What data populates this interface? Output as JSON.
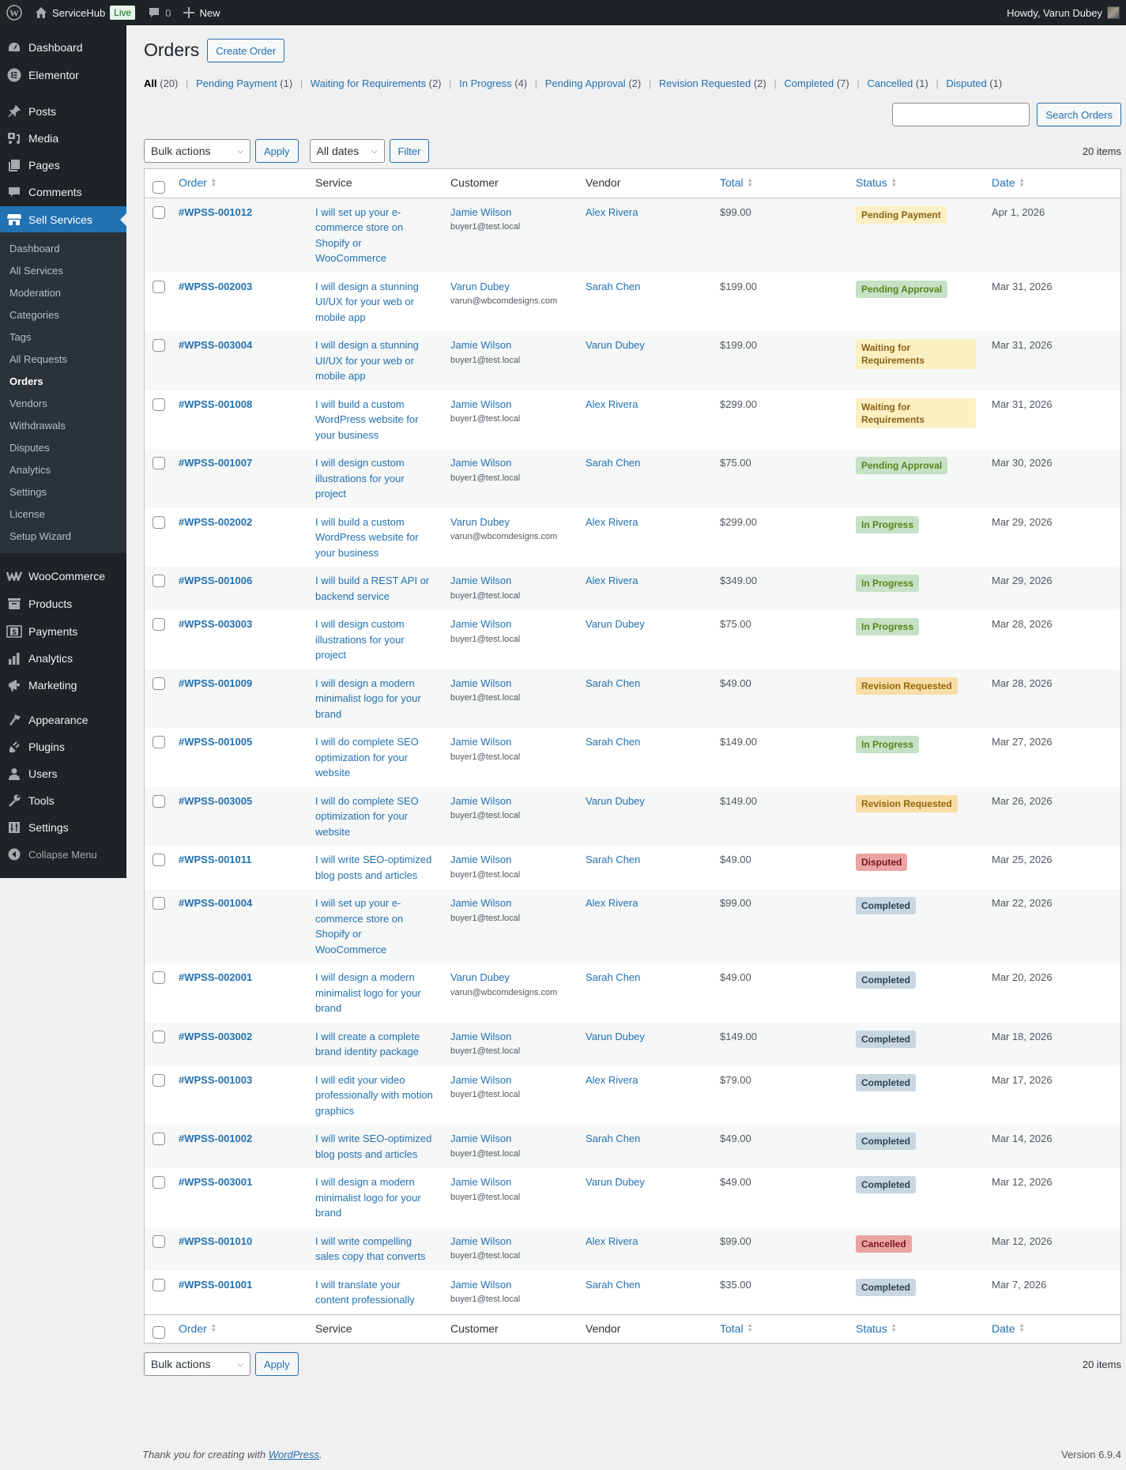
{
  "adminbar": {
    "site_name": "ServiceHub",
    "live_label": "Live",
    "comments_count": "0",
    "new_label": "New",
    "howdy": "Howdy, Varun Dubey"
  },
  "sidebar": {
    "top_items": [
      {
        "label": "Dashboard",
        "icon": "dashboard-icon"
      },
      {
        "label": "Elementor",
        "icon": "elementor-icon"
      },
      {
        "label": "Posts",
        "icon": "pin-icon"
      },
      {
        "label": "Media",
        "icon": "media-icon"
      },
      {
        "label": "Pages",
        "icon": "pages-icon"
      },
      {
        "label": "Comments",
        "icon": "comment-icon"
      },
      {
        "label": "Sell Services",
        "icon": "store-icon"
      }
    ],
    "submenu": [
      "Dashboard",
      "All Services",
      "Moderation",
      "Categories",
      "Tags",
      "All Requests",
      "Orders",
      "Vendors",
      "Withdrawals",
      "Disputes",
      "Analytics",
      "Settings",
      "License",
      "Setup Wizard"
    ],
    "bottom_items": [
      {
        "label": "WooCommerce",
        "icon": "woocommerce-icon"
      },
      {
        "label": "Products",
        "icon": "archive-icon"
      },
      {
        "label": "Payments",
        "icon": "payments-icon"
      },
      {
        "label": "Analytics",
        "icon": "bar-chart-icon"
      },
      {
        "label": "Marketing",
        "icon": "megaphone-icon"
      },
      {
        "label": "Appearance",
        "icon": "brush-icon"
      },
      {
        "label": "Plugins",
        "icon": "plugin-icon"
      },
      {
        "label": "Users",
        "icon": "user-icon"
      },
      {
        "label": "Tools",
        "icon": "wrench-icon"
      },
      {
        "label": "Settings",
        "icon": "settings-icon"
      },
      {
        "label": "Collapse Menu",
        "icon": "collapse-icon"
      }
    ]
  },
  "page": {
    "title": "Orders",
    "create_button": "Create Order",
    "views": [
      {
        "label": "All",
        "count": "(20)",
        "current": true
      },
      {
        "label": "Pending Payment",
        "count": "(1)"
      },
      {
        "label": "Waiting for Requirements",
        "count": "(2)"
      },
      {
        "label": "In Progress",
        "count": "(4)"
      },
      {
        "label": "Pending Approval",
        "count": "(2)"
      },
      {
        "label": "Revision Requested",
        "count": "(2)"
      },
      {
        "label": "Completed",
        "count": "(7)"
      },
      {
        "label": "Cancelled",
        "count": "(1)"
      },
      {
        "label": "Disputed",
        "count": "(1)"
      }
    ],
    "search_value": "",
    "search_button": "Search Orders",
    "bulk_actions": "Bulk actions",
    "apply": "Apply",
    "dates": "All dates",
    "filter": "Filter",
    "items_count": "20 items"
  },
  "table": {
    "columns": [
      "Order",
      "Service",
      "Customer",
      "Vendor",
      "Total",
      "Status",
      "Date"
    ],
    "sortable": [
      true,
      false,
      false,
      false,
      true,
      true,
      true
    ],
    "rows": [
      {
        "order": "#WPSS-001012",
        "service": "I will set up your e-commerce store on Shopify or WooCommerce",
        "customer": "Jamie Wilson",
        "email": "buyer1@test.local",
        "vendor": "Alex Rivera",
        "total": "$99.00",
        "status": "Pending Payment",
        "status_key": "pending-payment",
        "date": "Apr 1, 2026"
      },
      {
        "order": "#WPSS-002003",
        "service": "I will design a stunning UI/UX for your web or mobile app",
        "customer": "Varun Dubey",
        "email": "varun@wbcomdesigns.com",
        "vendor": "Sarah Chen",
        "total": "$199.00",
        "status": "Pending Approval",
        "status_key": "pending-approval",
        "date": "Mar 31, 2026"
      },
      {
        "order": "#WPSS-003004",
        "service": "I will design a stunning UI/UX for your web or mobile app",
        "customer": "Jamie Wilson",
        "email": "buyer1@test.local",
        "vendor": "Varun Dubey",
        "total": "$199.00",
        "status": "Waiting for Requirements",
        "status_key": "waiting",
        "date": "Mar 31, 2026"
      },
      {
        "order": "#WPSS-001008",
        "service": "I will build a custom WordPress website for your business",
        "customer": "Jamie Wilson",
        "email": "buyer1@test.local",
        "vendor": "Alex Rivera",
        "total": "$299.00",
        "status": "Waiting for Requirements",
        "status_key": "waiting",
        "date": "Mar 31, 2026"
      },
      {
        "order": "#WPSS-001007",
        "service": "I will design custom illustrations for your project",
        "customer": "Jamie Wilson",
        "email": "buyer1@test.local",
        "vendor": "Sarah Chen",
        "total": "$75.00",
        "status": "Pending Approval",
        "status_key": "pending-approval",
        "date": "Mar 30, 2026"
      },
      {
        "order": "#WPSS-002002",
        "service": "I will build a custom WordPress website for your business",
        "customer": "Varun Dubey",
        "email": "varun@wbcomdesigns.com",
        "vendor": "Alex Rivera",
        "total": "$299.00",
        "status": "In Progress",
        "status_key": "in-progress",
        "date": "Mar 29, 2026"
      },
      {
        "order": "#WPSS-001006",
        "service": "I will build a REST API or backend service",
        "customer": "Jamie Wilson",
        "email": "buyer1@test.local",
        "vendor": "Alex Rivera",
        "total": "$349.00",
        "status": "In Progress",
        "status_key": "in-progress",
        "date": "Mar 29, 2026"
      },
      {
        "order": "#WPSS-003003",
        "service": "I will design custom illustrations for your project",
        "customer": "Jamie Wilson",
        "email": "buyer1@test.local",
        "vendor": "Varun Dubey",
        "total": "$75.00",
        "status": "In Progress",
        "status_key": "in-progress",
        "date": "Mar 28, 2026"
      },
      {
        "order": "#WPSS-001009",
        "service": "I will design a modern minimalist logo for your brand",
        "customer": "Jamie Wilson",
        "email": "buyer1@test.local",
        "vendor": "Sarah Chen",
        "total": "$49.00",
        "status": "Revision Requested",
        "status_key": "revision",
        "date": "Mar 28, 2026"
      },
      {
        "order": "#WPSS-001005",
        "service": "I will do complete SEO optimization for your website",
        "customer": "Jamie Wilson",
        "email": "buyer1@test.local",
        "vendor": "Sarah Chen",
        "total": "$149.00",
        "status": "In Progress",
        "status_key": "in-progress",
        "date": "Mar 27, 2026"
      },
      {
        "order": "#WPSS-003005",
        "service": "I will do complete SEO optimization for your website",
        "customer": "Jamie Wilson",
        "email": "buyer1@test.local",
        "vendor": "Varun Dubey",
        "total": "$149.00",
        "status": "Revision Requested",
        "status_key": "revision",
        "date": "Mar 26, 2026"
      },
      {
        "order": "#WPSS-001011",
        "service": "I will write SEO-optimized blog posts and articles",
        "customer": "Jamie Wilson",
        "email": "buyer1@test.local",
        "vendor": "Sarah Chen",
        "total": "$49.00",
        "status": "Disputed",
        "status_key": "disputed",
        "date": "Mar 25, 2026"
      },
      {
        "order": "#WPSS-001004",
        "service": "I will set up your e-commerce store on Shopify or WooCommerce",
        "customer": "Jamie Wilson",
        "email": "buyer1@test.local",
        "vendor": "Alex Rivera",
        "total": "$99.00",
        "status": "Completed",
        "status_key": "completed",
        "date": "Mar 22, 2026"
      },
      {
        "order": "#WPSS-002001",
        "service": "I will design a modern minimalist logo for your brand",
        "customer": "Varun Dubey",
        "email": "varun@wbcomdesigns.com",
        "vendor": "Sarah Chen",
        "total": "$49.00",
        "status": "Completed",
        "status_key": "completed",
        "date": "Mar 20, 2026"
      },
      {
        "order": "#WPSS-003002",
        "service": "I will create a complete brand identity package",
        "customer": "Jamie Wilson",
        "email": "buyer1@test.local",
        "vendor": "Varun Dubey",
        "total": "$149.00",
        "status": "Completed",
        "status_key": "completed",
        "date": "Mar 18, 2026"
      },
      {
        "order": "#WPSS-001003",
        "service": "I will edit your video professionally with motion graphics",
        "customer": "Jamie Wilson",
        "email": "buyer1@test.local",
        "vendor": "Alex Rivera",
        "total": "$79.00",
        "status": "Completed",
        "status_key": "completed",
        "date": "Mar 17, 2026"
      },
      {
        "order": "#WPSS-001002",
        "service": "I will write SEO-optimized blog posts and articles",
        "customer": "Jamie Wilson",
        "email": "buyer1@test.local",
        "vendor": "Sarah Chen",
        "total": "$49.00",
        "status": "Completed",
        "status_key": "completed",
        "date": "Mar 14, 2026"
      },
      {
        "order": "#WPSS-003001",
        "service": "I will design a modern minimalist logo for your brand",
        "customer": "Jamie Wilson",
        "email": "buyer1@test.local",
        "vendor": "Varun Dubey",
        "total": "$49.00",
        "status": "Completed",
        "status_key": "completed",
        "date": "Mar 12, 2026"
      },
      {
        "order": "#WPSS-001010",
        "service": "I will write compelling sales copy that converts",
        "customer": "Jamie Wilson",
        "email": "buyer1@test.local",
        "vendor": "Alex Rivera",
        "total": "$99.00",
        "status": "Cancelled",
        "status_key": "cancelled",
        "date": "Mar 12, 2026"
      },
      {
        "order": "#WPSS-001001",
        "service": "I will translate your content professionally",
        "customer": "Jamie Wilson",
        "email": "buyer1@test.local",
        "vendor": "Sarah Chen",
        "total": "$35.00",
        "status": "Completed",
        "status_key": "completed",
        "date": "Mar 7, 2026"
      }
    ]
  },
  "status_colors": {
    "pending-payment": {
      "bg": "#fcf0c3",
      "fg": "#8a6116"
    },
    "waiting": {
      "bg": "#fcf0c3",
      "fg": "#8a6116"
    },
    "pending-approval": {
      "bg": "#c6e1c6",
      "fg": "#5b841b"
    },
    "in-progress": {
      "bg": "#c6e1c6",
      "fg": "#5b841b"
    },
    "revision": {
      "bg": "#f8dda7",
      "fg": "#94660c"
    },
    "disputed": {
      "bg": "#eba3a3",
      "fg": "#761919"
    },
    "cancelled": {
      "bg": "#eba3a3",
      "fg": "#761919"
    },
    "completed": {
      "bg": "#c8d7e1",
      "fg": "#2e4453"
    }
  },
  "footer": {
    "thanks_prefix": "Thank you for creating with ",
    "wordpress_link": "WordPress",
    "thanks_suffix": ".",
    "version": "Version 6.9.4"
  }
}
